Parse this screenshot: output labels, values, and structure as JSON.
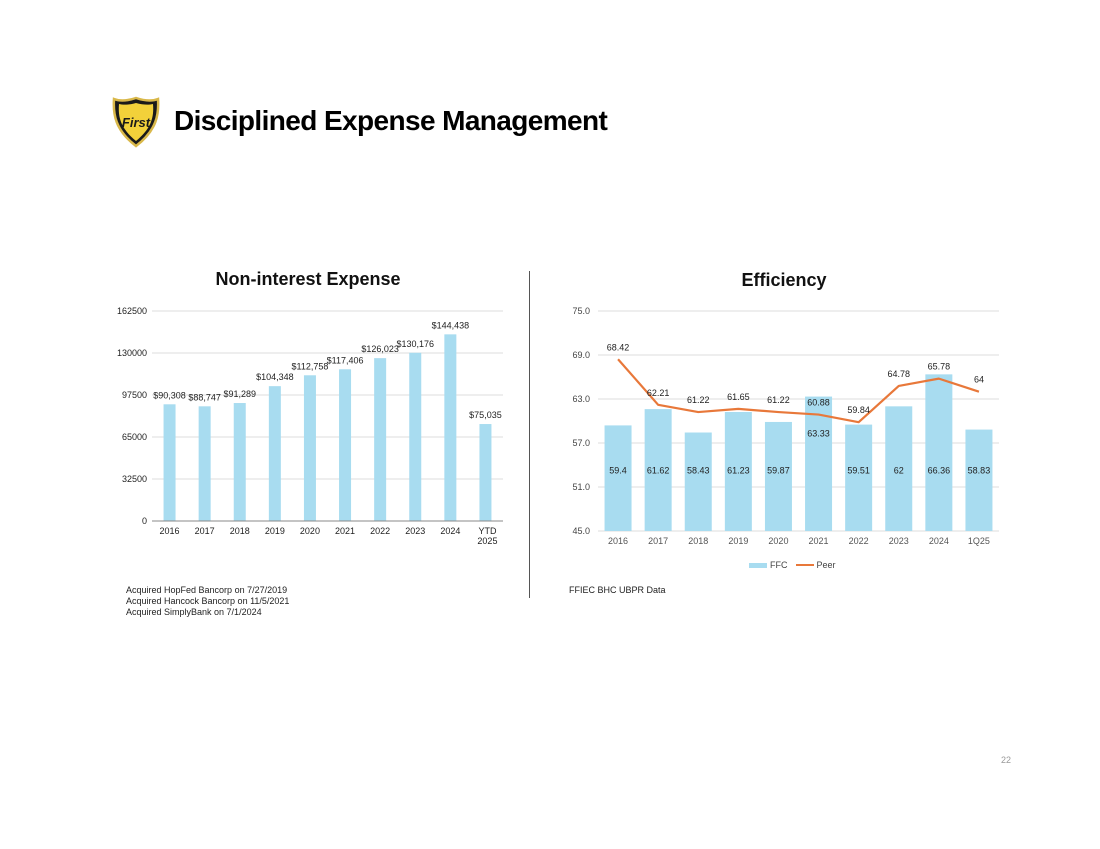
{
  "page": {
    "title": "Disciplined Expense Management",
    "page_number": "22",
    "logo_text": "First"
  },
  "colors": {
    "bar": "#a8dcf0",
    "line": "#e8783a",
    "grid": "#dddddd",
    "divider": "#555555"
  },
  "left_chart": {
    "footnotes": [
      "Acquired HopFed Bancorp on 7/27/2019",
      "Acquired Hancock Bancorp on 11/5/2021",
      "Acquired SimplyBank on 7/1/2024"
    ]
  },
  "right_chart": {
    "source": "FFIEC BHC UBPR Data",
    "legend": [
      "FFC",
      "Peer"
    ]
  },
  "chart_data": [
    {
      "type": "bar",
      "title": "Non-interest Expense",
      "categories": [
        "2016",
        "2017",
        "2018",
        "2019",
        "2020",
        "2021",
        "2022",
        "2023",
        "2024",
        "YTD 2025"
      ],
      "values": [
        90308,
        88747,
        91289,
        104348,
        112758,
        117406,
        126023,
        130176,
        144438,
        75035
      ],
      "data_labels": [
        "$90,308",
        "$88,747",
        "$91,289",
        "$104,348",
        "$112,758",
        "$117,406",
        "$126,023",
        "$130,176",
        "$144,438",
        "$75,035"
      ],
      "yticks": [
        "0",
        "32500",
        "65000",
        "97500",
        "130000",
        "162500"
      ],
      "ylim": [
        0,
        162500
      ],
      "grid": true
    },
    {
      "type": "bar",
      "title": "Efficiency",
      "categories": [
        "2016",
        "2017",
        "2018",
        "2019",
        "2020",
        "2021",
        "2022",
        "2023",
        "2024",
        "1Q25"
      ],
      "series": [
        {
          "name": "FFC",
          "type": "bar",
          "values": [
            59.4,
            61.62,
            58.43,
            61.23,
            59.87,
            63.33,
            59.51,
            62,
            66.36,
            58.83
          ]
        },
        {
          "name": "Peer",
          "type": "line",
          "values": [
            68.42,
            62.21,
            61.22,
            61.65,
            61.22,
            60.88,
            59.84,
            64.78,
            65.78,
            64
          ]
        }
      ],
      "yticks": [
        "45.0",
        "51.0",
        "57.0",
        "63.0",
        "69.0",
        "75.0"
      ],
      "ylim": [
        45,
        75
      ],
      "grid": true,
      "legend_position": "bottom"
    }
  ]
}
